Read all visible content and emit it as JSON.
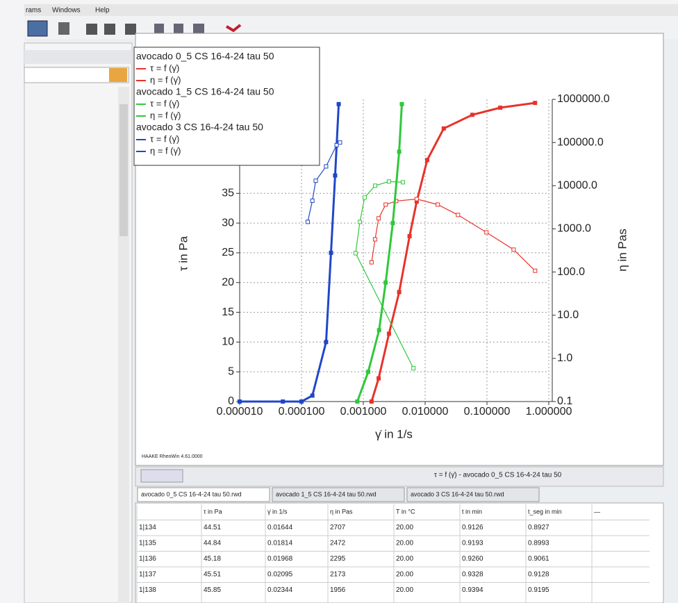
{
  "menu": [
    "rams",
    "Windows",
    "Help"
  ],
  "footer_note": "HAAKE RheoWin 4.61.0000",
  "status_caption": "τ = f (γ̇) - avocado 0_5 CS 16-4-24 tau 50",
  "tabs": [
    "avocado 0_5 CS 16-4-24 tau 50.rwd",
    "avocado 1_5 CS 16-4-24 tau 50.rwd",
    "avocado 3 CS 16-4-24 tau 50.rwd"
  ],
  "table": {
    "header": [
      "τ in Pa",
      "γ̇ in 1/s",
      "η in Pas",
      "T in °C",
      "t in min",
      "t_seg in min",
      "—"
    ],
    "rows": [
      [
        "1|134",
        "44.51",
        "0.01644",
        "2707",
        "20.00",
        "0.9126",
        "0.8927"
      ],
      [
        "1|135",
        "44.84",
        "0.01814",
        "2472",
        "20.00",
        "0.9193",
        "0.8993"
      ],
      [
        "1|136",
        "45.18",
        "0.01968",
        "2295",
        "20.00",
        "0.9260",
        "0.9061"
      ],
      [
        "1|137",
        "45.51",
        "0.02095",
        "2173",
        "20.00",
        "0.9328",
        "0.9128"
      ],
      [
        "1|138",
        "45.85",
        "0.02344",
        "1956",
        "20.00",
        "0.9394",
        "0.9195"
      ]
    ]
  },
  "chart_data": {
    "type": "line",
    "x_label": "γ̇ in 1/s",
    "y_label": "τ in Pa",
    "y2_label": "η in Pas",
    "x_log": true,
    "y2_log": true,
    "grid": true,
    "xlim": [
      1e-05,
      1
    ],
    "xticks": [
      {
        "value": 1e-05,
        "label": "0.000010"
      },
      {
        "value": 0.0001,
        "label": "0.000100"
      },
      {
        "value": 0.001,
        "label": "0.001000"
      },
      {
        "value": 0.01,
        "label": "0.010000"
      },
      {
        "value": 0.1,
        "label": "0.100000"
      },
      {
        "value": 1,
        "label": "1.000000"
      }
    ],
    "ylim": [
      0,
      50.8
    ],
    "yticks": [
      0,
      5,
      10,
      15,
      20,
      25,
      30,
      35
    ],
    "y2lim": [
      0.1,
      1000000
    ],
    "y2ticks": [
      0.1,
      {
        "value": 1,
        "label": "1.0"
      },
      {
        "value": 10,
        "label": "10.0"
      },
      {
        "value": 100,
        "label": "100.0"
      },
      {
        "value": 1000,
        "label": "1000.0"
      },
      {
        "value": 10000,
        "label": "10000.0"
      },
      {
        "value": 100000,
        "label": "100000.0"
      },
      {
        "value": 1000000,
        "label": "1000000.0"
      }
    ],
    "groups": [
      {
        "title": "avocado 0_5 CS 16-4-24 tau 50",
        "series": [
          {
            "name": "τ = f (γ̇)",
            "color": "#e8322a",
            "axis": "y",
            "x": [
              0.00136,
              0.00177,
              0.0026,
              0.0038,
              0.0056,
              0.0073,
              0.0108,
              0.02,
              0.058,
              0.164,
              0.6
            ],
            "values": [
              0,
              3.9,
              11.4,
              18.4,
              27.8,
              33.6,
              40.6,
              45.9,
              48.2,
              49.4,
              50.2
            ]
          },
          {
            "name": "η = f (γ̇)",
            "color": "#e8322a",
            "axis": "y2",
            "x": [
              0.00136,
              0.00155,
              0.00177,
              0.0023,
              0.0034,
              0.0073,
              0.016,
              0.034,
              0.098,
              0.27,
              0.6
            ],
            "values": [
              168,
              573,
              1750,
              3650,
              4400,
              4900,
              3650,
              2100,
              830,
              330,
              107
            ]
          }
        ]
      },
      {
        "title": "avocado 1_5 CS 16-4-24 tau 50",
        "series": [
          {
            "name": "τ = f (γ̇)",
            "color": "#2fc83a",
            "axis": "y",
            "x": [
              0.0008,
              0.0012,
              0.0018,
              0.0023,
              0.003,
              0.0038,
              0.0042
            ],
            "values": [
              0,
              5,
              12,
              20,
              30,
              42,
              50
            ]
          },
          {
            "name": "η = f (γ̇)",
            "color": "#2fc83a",
            "axis": "y2",
            "x": [
              0.00647,
              0.00075,
              0.00088,
              0.00105,
              0.00155,
              0.0026,
              0.00437
            ],
            "values": [
              0.59,
              272,
              1450,
              5320,
              10000,
              12500,
              12000
            ]
          }
        ]
      },
      {
        "title": "avocado 3 CS 16-4-24 tau 50",
        "series": [
          {
            "name": "τ = f (γ̇)",
            "color": "#1f47c8",
            "axis": "y",
            "x": [
              1e-05,
              5e-05,
              0.0001,
              0.00015,
              0.00025,
              0.0003,
              0.00035,
              0.0004
            ],
            "values": [
              0,
              0,
              0,
              1,
              10,
              25,
              38,
              50
            ]
          },
          {
            "name": "η = f (γ̇)",
            "color": "#1f47c8",
            "axis": "y2",
            "x": [
              0.000126,
              0.00015,
              0.00017,
              0.00025,
              0.00037,
              0.00042
            ],
            "values": [
              1450,
              4500,
              13000,
              28000,
              87000,
              100000
            ]
          }
        ]
      }
    ]
  }
}
